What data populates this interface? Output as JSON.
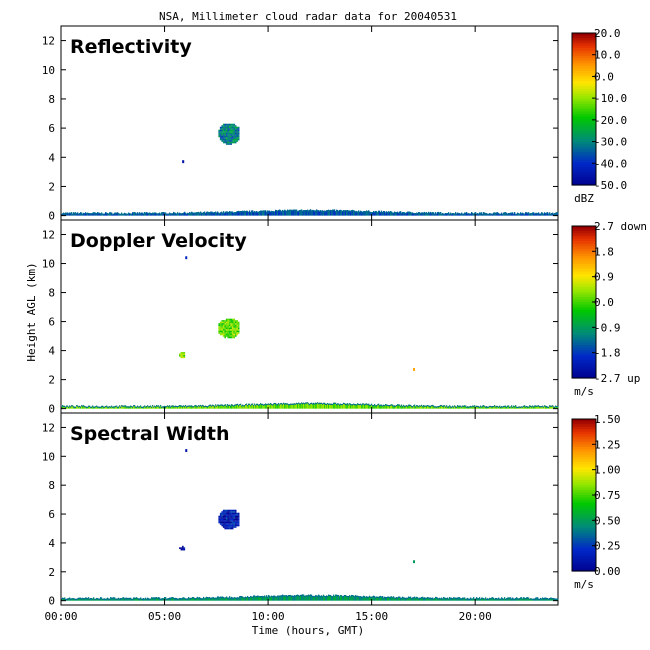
{
  "chart_data": {
    "type": "heatmap",
    "title": "NSA, Millimeter cloud radar data for 20040531",
    "xlabel": "Time (hours, GMT)",
    "ylabel": "Height AGL (km)",
    "xlim": [
      0,
      24
    ],
    "ylim": [
      -0.3,
      13
    ],
    "x_ticks": [
      {
        "value": 0,
        "label": "00:00"
      },
      {
        "value": 5,
        "label": "05:00"
      },
      {
        "value": 10,
        "label": "10:00"
      },
      {
        "value": 15,
        "label": "15:00"
      },
      {
        "value": 20,
        "label": "20:00"
      }
    ],
    "y_ticks": [
      0,
      2,
      4,
      6,
      8,
      10,
      12
    ],
    "panels": [
      {
        "name": "Reflectivity",
        "unit": "dBZ",
        "colorbar_ticks": [
          "20.0",
          "10.0",
          "0.0",
          "-10.0",
          "-20.0",
          "-30.0",
          "-40.0",
          "-50.0"
        ],
        "colorbar_range": [
          -50,
          20
        ],
        "features": [
          {
            "t0": 0,
            "t1": 24,
            "h0": 0,
            "h1_max": 0.6,
            "value": -35
          },
          {
            "t0": 7.6,
            "t1": 8.6,
            "h0": 4.9,
            "h1": 6.3,
            "value": -30
          },
          {
            "t0": 5.85,
            "t1": 5.95,
            "h0": 3.6,
            "h1": 3.8,
            "value": -45
          }
        ]
      },
      {
        "name": "Doppler Velocity",
        "unit": "m/s",
        "colorbar_ticks": [
          "2.7 down",
          "1.8",
          "0.9",
          "0.0",
          "-0.9",
          "-1.8",
          "-2.7 up"
        ],
        "colorbar_range": [
          -2.7,
          2.7
        ],
        "features": [
          {
            "t0": 0,
            "t1": 24,
            "h0": 0,
            "h1_max": 0.6,
            "value": 0.2
          },
          {
            "t0": 7.6,
            "t1": 8.6,
            "h0": 4.9,
            "h1": 6.2,
            "value": 0.2
          },
          {
            "t0": 5.7,
            "t1": 6.0,
            "h0": 3.5,
            "h1": 3.9,
            "value": 0.2
          },
          {
            "t0": 6.0,
            "t1": 6.05,
            "h0": 10.3,
            "h1": 10.5,
            "value": -2.0
          },
          {
            "t0": 17.0,
            "t1": 17.05,
            "h0": 2.6,
            "h1": 2.8,
            "value": 1.5
          }
        ]
      },
      {
        "name": "Spectral Width",
        "unit": "m/s",
        "colorbar_ticks": [
          "1.50",
          "1.25",
          "1.00",
          "0.75",
          "0.50",
          "0.25",
          "0.00"
        ],
        "colorbar_range": [
          0,
          1.5
        ],
        "features": [
          {
            "t0": 0,
            "t1": 24,
            "h0": 0,
            "h1_max": 0.6,
            "value": 0.5
          },
          {
            "t0": 7.6,
            "t1": 8.6,
            "h0": 4.9,
            "h1": 6.3,
            "value": 0.15
          },
          {
            "t0": 5.7,
            "t1": 6.0,
            "h0": 3.5,
            "h1": 3.8,
            "value": 0.15
          },
          {
            "t0": 6.0,
            "t1": 6.05,
            "h0": 10.3,
            "h1": 10.5,
            "value": 0.1
          },
          {
            "t0": 17.0,
            "t1": 17.05,
            "h0": 2.6,
            "h1": 2.8,
            "value": 0.5
          }
        ]
      }
    ]
  }
}
